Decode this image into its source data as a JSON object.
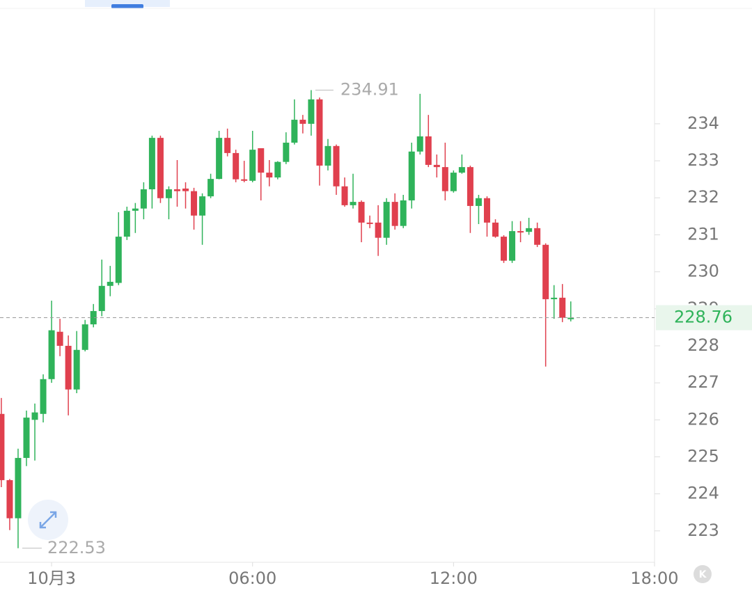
{
  "chart_data": {
    "type": "candlestick",
    "x": [
      -1.5,
      -1.25,
      -1,
      -0.75,
      -0.5,
      -0.25,
      0,
      0.25,
      0.5,
      0.75,
      1,
      1.25,
      1.5,
      1.75,
      2,
      2.25,
      2.5,
      2.75,
      3,
      3.25,
      3.5,
      3.75,
      4,
      4.25,
      4.5,
      4.75,
      5,
      5.25,
      5.5,
      5.75,
      6,
      6.25,
      6.5,
      6.75,
      7,
      7.25,
      7.5,
      7.75,
      8,
      8.25,
      8.5,
      8.75,
      9,
      9.25,
      9.5,
      9.75,
      10,
      10.25,
      10.5,
      10.75,
      11,
      11.25,
      11.5,
      11.75,
      12,
      12.25,
      12.5,
      12.75,
      13,
      13.25,
      13.5,
      13.75,
      14,
      14.25,
      14.5,
      14.75,
      15,
      15.25,
      15.5
    ],
    "open": [
      226.16,
      224.37,
      223.34,
      224.97,
      226.0,
      226.16,
      227.1,
      228.38,
      228.0,
      226.82,
      227.89,
      228.58,
      228.94,
      229.62,
      229.7,
      230.95,
      231.65,
      231.71,
      232.23,
      233.62,
      231.99,
      232.23,
      232.25,
      232.18,
      231.52,
      232.04,
      232.51,
      233.62,
      233.21,
      232.5,
      232.46,
      233.34,
      232.68,
      232.55,
      232.97,
      233.49,
      234.11,
      234.0,
      234.66,
      232.87,
      233.4,
      232.31,
      231.8,
      231.89,
      231.33,
      231.33,
      230.92,
      231.89,
      231.24,
      231.93,
      233.25,
      233.66,
      232.89,
      232.83,
      232.18,
      232.68,
      232.83,
      231.78,
      231.99,
      231.33,
      230.95,
      230.3,
      231.1,
      231.08,
      231.18,
      230.73,
      229.26,
      229.3,
      228.72
    ],
    "high": [
      226.59,
      224.4,
      225.22,
      226.25,
      226.44,
      227.23,
      229.22,
      228.73,
      228.28,
      228.4,
      228.7,
      229.13,
      230.33,
      230.16,
      231.61,
      231.76,
      231.86,
      232.42,
      233.68,
      233.68,
      232.31,
      233.02,
      232.42,
      232.27,
      232.12,
      232.65,
      233.81,
      233.87,
      233.3,
      233.0,
      233.81,
      233.34,
      233.02,
      232.99,
      233.77,
      234.66,
      234.24,
      234.91,
      234.71,
      233.59,
      233.44,
      232.55,
      232.65,
      231.93,
      231.52,
      231.8,
      231.99,
      232.12,
      232.08,
      233.49,
      234.81,
      234.24,
      233.17,
      233.49,
      232.74,
      233.17,
      232.87,
      232.08,
      232.04,
      231.42,
      230.99,
      231.37,
      231.37,
      231.46,
      231.33,
      230.77,
      229.64,
      229.67,
      229.2
    ],
    "low": [
      224.18,
      223.02,
      222.53,
      224.75,
      224.9,
      225.93,
      227.0,
      227.72,
      226.12,
      226.72,
      227.85,
      228.5,
      228.8,
      229.34,
      229.64,
      230.86,
      231.05,
      231.42,
      231.71,
      231.86,
      231.42,
      231.76,
      231.71,
      231.14,
      230.73,
      231.99,
      232.5,
      233.12,
      232.42,
      232.42,
      232.42,
      231.93,
      232.31,
      232.5,
      232.91,
      233.44,
      233.74,
      233.68,
      232.33,
      232.74,
      232.08,
      231.76,
      231.71,
      230.8,
      231.18,
      230.43,
      230.73,
      231.14,
      231.18,
      231.71,
      233.17,
      232.83,
      232.55,
      231.93,
      232.14,
      232.65,
      231.05,
      231.29,
      230.95,
      230.92,
      230.24,
      230.24,
      230.8,
      231.0,
      230.67,
      227.44,
      228.73,
      228.64,
      228.66
    ],
    "close": [
      224.37,
      223.34,
      224.97,
      226.06,
      226.2,
      227.1,
      228.42,
      228.0,
      226.82,
      227.89,
      228.58,
      228.94,
      229.62,
      229.73,
      230.95,
      231.65,
      231.71,
      232.23,
      233.62,
      231.99,
      232.23,
      232.18,
      232.18,
      231.52,
      232.04,
      232.51,
      233.62,
      233.21,
      232.5,
      232.46,
      233.3,
      232.68,
      232.55,
      232.97,
      233.49,
      234.11,
      234.0,
      234.66,
      232.87,
      233.4,
      232.31,
      231.8,
      231.89,
      231.33,
      231.3,
      230.92,
      231.89,
      231.24,
      231.93,
      233.25,
      233.66,
      232.89,
      232.83,
      232.18,
      232.68,
      232.83,
      231.78,
      231.99,
      231.33,
      230.95,
      230.3,
      231.1,
      231.08,
      231.18,
      230.73,
      229.26,
      229.3,
      228.76,
      228.76
    ],
    "up_color": "#2fb35a",
    "down_color": "#e0404e",
    "xlim": [
      -1.54,
      18
    ],
    "ylim": [
      222.15,
      237.12
    ],
    "xticks": [
      {
        "value": 0,
        "label": "10月3"
      },
      {
        "value": 6,
        "label": "06:00"
      },
      {
        "value": 12,
        "label": "12:00"
      },
      {
        "value": 18,
        "label": "18:00"
      }
    ],
    "yticks": [
      223,
      224,
      225,
      226,
      227,
      228,
      229,
      230,
      231,
      232,
      233,
      234
    ],
    "high_label": 234.91,
    "low_label": 222.53,
    "last_price": 228.76
  }
}
